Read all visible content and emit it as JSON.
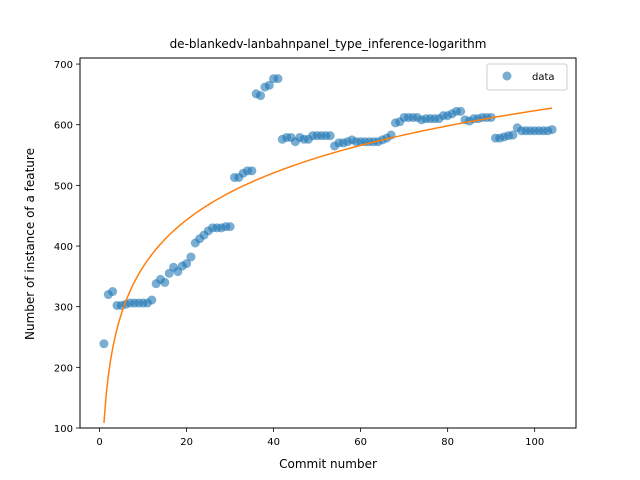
{
  "chart_data": {
    "type": "scatter",
    "title": "de-blankedv-lanbahnpanel_type_inference-logarithm",
    "xlabel": "Commit number",
    "ylabel": "Number of instance of a feature",
    "xlim": [
      -4.5,
      109.5
    ],
    "ylim": [
      100,
      710
    ],
    "xticks": [
      0,
      20,
      40,
      60,
      80,
      100
    ],
    "yticks": [
      100,
      200,
      300,
      400,
      500,
      600,
      700
    ],
    "legend_position": "top-right",
    "colors": {
      "data": "#1f77b4",
      "fit": "#ff7f0e"
    },
    "series": [
      {
        "name": "data",
        "kind": "scatter",
        "x": [
          1,
          2,
          3,
          4,
          5,
          6,
          7,
          8,
          9,
          10,
          11,
          12,
          13,
          14,
          15,
          16,
          17,
          18,
          19,
          20,
          21,
          22,
          23,
          24,
          25,
          26,
          27,
          28,
          29,
          30,
          31,
          32,
          33,
          34,
          35,
          36,
          37,
          38,
          39,
          40,
          41,
          42,
          43,
          44,
          45,
          46,
          47,
          48,
          49,
          50,
          51,
          52,
          53,
          54,
          55,
          56,
          57,
          58,
          59,
          60,
          61,
          62,
          63,
          64,
          65,
          66,
          67,
          68,
          69,
          70,
          71,
          72,
          73,
          74,
          75,
          76,
          77,
          78,
          79,
          80,
          81,
          82,
          83,
          84,
          85,
          86,
          87,
          88,
          89,
          90,
          91,
          92,
          93,
          94,
          95,
          96,
          97,
          98,
          99,
          100,
          101,
          102,
          103,
          104
        ],
        "y": [
          239,
          320,
          325,
          302,
          302,
          304,
          306,
          306,
          306,
          306,
          306,
          311,
          338,
          345,
          340,
          355,
          365,
          358,
          367,
          371,
          382,
          405,
          412,
          418,
          425,
          430,
          430,
          430,
          432,
          432,
          513,
          513,
          520,
          524,
          524,
          651,
          648,
          662,
          665,
          676,
          676,
          576,
          579,
          579,
          572,
          579,
          576,
          576,
          582,
          582,
          582,
          582,
          582,
          565,
          570,
          570,
          572,
          575,
          572,
          572,
          572,
          572,
          572,
          572,
          575,
          578,
          583,
          603,
          605,
          612,
          612,
          612,
          612,
          608,
          610,
          610,
          610,
          610,
          615,
          615,
          618,
          622,
          622,
          608,
          606,
          610,
          610,
          612,
          612,
          612,
          578,
          578,
          580,
          582,
          583,
          595,
          590,
          590,
          590,
          590,
          590,
          590,
          590,
          592
        ]
      },
      {
        "name": "",
        "kind": "line",
        "a": 108.2,
        "b": 111.8,
        "formula": "y = a + b*ln(x)",
        "x_range": [
          1,
          104
        ]
      }
    ]
  }
}
